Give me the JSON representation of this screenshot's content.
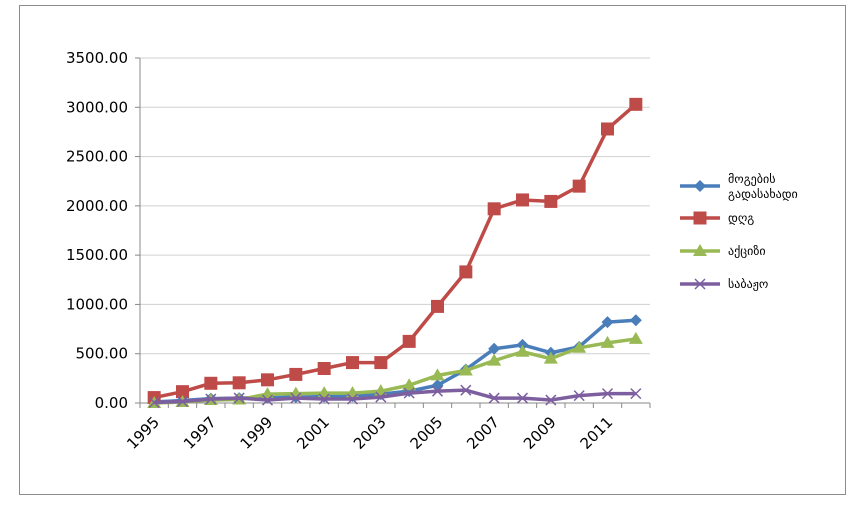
{
  "chart_data": {
    "type": "line",
    "title": "",
    "xlabel": "",
    "ylabel": "",
    "x": [
      1995,
      1996,
      1997,
      1998,
      1999,
      2000,
      2001,
      2002,
      2003,
      2004,
      2005,
      2006,
      2007,
      2008,
      2009,
      2010,
      2011,
      2012
    ],
    "x_tick_labels": [
      "1995",
      "1997",
      "1999",
      "2001",
      "2003",
      "2005",
      "2007",
      "2009",
      "2011"
    ],
    "ylim": [
      0,
      3500
    ],
    "y_ticks": [
      0,
      500,
      1000,
      1500,
      2000,
      2500,
      3000,
      3500
    ],
    "y_tick_labels": [
      "0.00",
      "500.00",
      "1000.00",
      "1500.00",
      "2000.00",
      "2500.00",
      "3000.00",
      "3500.00"
    ],
    "grid": true,
    "legend_position": "right",
    "series": [
      {
        "name": "მოგების გადასახადი",
        "legend_lines": [
          "მოგების",
          "გადასახადი"
        ],
        "color": "#4a7ebb",
        "marker": "diamond",
        "values": [
          10,
          25,
          45,
          50,
          55,
          60,
          65,
          70,
          90,
          120,
          180,
          340,
          550,
          590,
          510,
          570,
          820,
          840
        ]
      },
      {
        "name": "დღგ",
        "legend_lines": [
          "დღგ"
        ],
        "color": "#be4b48",
        "marker": "square",
        "values": [
          55,
          115,
          200,
          205,
          235,
          290,
          350,
          410,
          410,
          625,
          980,
          1330,
          1970,
          2060,
          2045,
          2200,
          2780,
          3030
        ]
      },
      {
        "name": "აქციზი",
        "legend_lines": [
          "აქციზი"
        ],
        "color": "#98b954",
        "marker": "triangle",
        "values": [
          0,
          10,
          30,
          35,
          90,
          95,
          100,
          100,
          120,
          180,
          280,
          330,
          430,
          520,
          450,
          560,
          610,
          650
        ]
      },
      {
        "name": "საბაჟო",
        "legend_lines": [
          "საბაჟო"
        ],
        "color": "#7d5fa0",
        "marker": "x",
        "values": [
          5,
          15,
          40,
          50,
          30,
          50,
          40,
          40,
          60,
          100,
          120,
          130,
          50,
          50,
          30,
          75,
          95,
          95
        ]
      }
    ]
  }
}
